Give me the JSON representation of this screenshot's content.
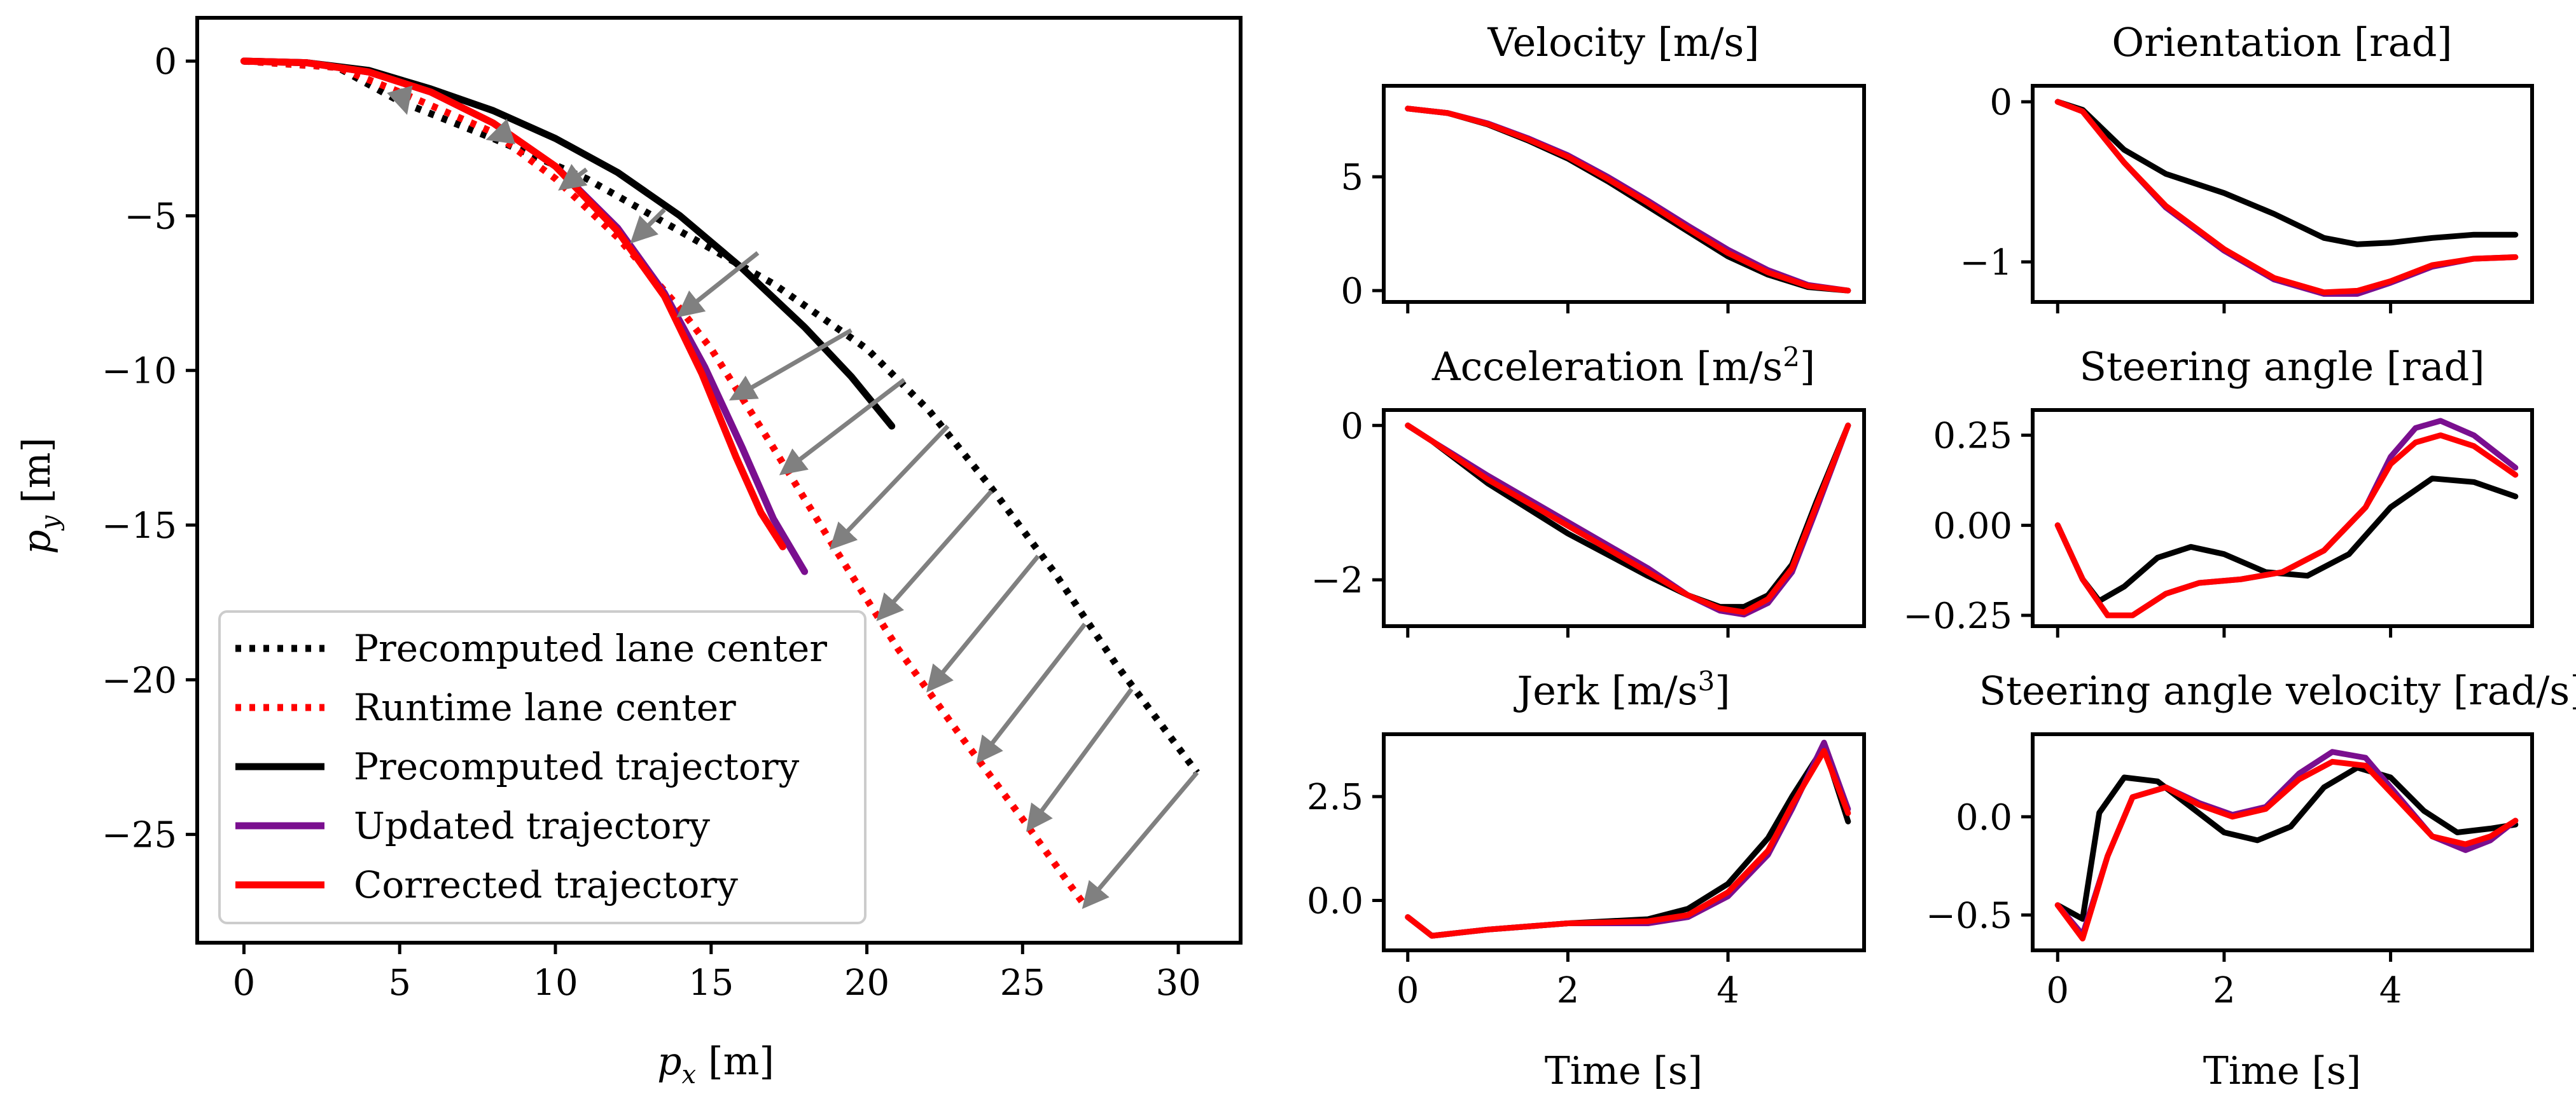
{
  "figure_title": "",
  "colors": {
    "black": "#000000",
    "purple": "#7a0f8f",
    "red": "#ff0000",
    "arrow": "#808080",
    "legend_border": "#cccccc"
  },
  "chart_data": [
    {
      "id": "trajectory",
      "type": "line",
      "title": "",
      "xlabel": "p_x [m]",
      "xlabel_parts": [
        "p",
        "x",
        " [m]"
      ],
      "ylabel": "p_y [m]",
      "ylabel_parts": [
        "p",
        "y",
        " [m]"
      ],
      "xlim": [
        -1.5,
        32
      ],
      "ylim": [
        -28.5,
        1.4
      ],
      "xticks": [
        0,
        5,
        10,
        15,
        20,
        25,
        30
      ],
      "yticks": [
        0,
        -5,
        -10,
        -15,
        -20,
        -25
      ],
      "ytick_labels": [
        "0",
        "−5",
        "−10",
        "−15",
        "−20",
        "−25"
      ],
      "legend_position": "lower-left",
      "series": [
        {
          "name": "Precomputed lane center",
          "style": "dotted",
          "color": "#000000",
          "x": [
            0,
            3,
            5,
            8,
            11,
            14,
            17,
            20,
            22,
            24,
            26,
            28,
            30.6
          ],
          "y": [
            0,
            -0.2,
            -1.3,
            -2.5,
            -3.8,
            -5.5,
            -7.2,
            -9.3,
            -11.3,
            -13.8,
            -16.5,
            -19.5,
            -23.0
          ]
        },
        {
          "name": "Runtime lane center",
          "style": "dotted",
          "color": "#ff0000",
          "x": [
            0,
            3,
            5,
            8,
            10,
            12,
            14,
            15,
            17,
            19,
            21,
            23,
            25,
            27
          ],
          "y": [
            0,
            -0.2,
            -1.0,
            -2.3,
            -3.8,
            -5.7,
            -8.0,
            -9.3,
            -12.5,
            -15.8,
            -19.0,
            -21.8,
            -24.5,
            -27.3
          ]
        },
        {
          "name": "Precomputed trajectory",
          "style": "solid",
          "color": "#000000",
          "x": [
            0,
            2,
            4,
            6,
            8,
            10,
            12,
            14,
            16,
            18,
            19.5,
            20.8
          ],
          "y": [
            0,
            -0.05,
            -0.3,
            -0.9,
            -1.6,
            -2.5,
            -3.6,
            -5.0,
            -6.7,
            -8.6,
            -10.2,
            -11.8
          ]
        },
        {
          "name": "Updated trajectory",
          "style": "solid",
          "color": "#7a0f8f",
          "x": [
            0,
            2,
            4,
            6,
            8,
            10,
            12,
            13.5,
            14.8,
            16,
            17,
            18
          ],
          "y": [
            0,
            -0.05,
            -0.35,
            -1.0,
            -2.0,
            -3.4,
            -5.4,
            -7.5,
            -9.9,
            -12.5,
            -14.8,
            -16.5
          ]
        },
        {
          "name": "Corrected trajectory",
          "style": "solid",
          "color": "#ff0000",
          "x": [
            0,
            2,
            4,
            6,
            8,
            10,
            12,
            13.5,
            14.7,
            15.8,
            16.6,
            17.3
          ],
          "y": [
            0,
            -0.05,
            -0.35,
            -1.0,
            -2.0,
            -3.4,
            -5.5,
            -7.6,
            -10.1,
            -12.8,
            -14.6,
            -15.7
          ]
        }
      ],
      "arrows": [
        {
          "x0": 5.0,
          "y0": -0.9,
          "x1": 5.2,
          "y1": -1.6
        },
        {
          "x0": 8.5,
          "y0": -2.3,
          "x1": 7.9,
          "y1": -2.5
        },
        {
          "x0": 11.0,
          "y0": -3.5,
          "x1": 10.2,
          "y1": -4.1
        },
        {
          "x0": 13.5,
          "y0": -4.8,
          "x1": 12.5,
          "y1": -5.8
        },
        {
          "x0": 16.5,
          "y0": -6.2,
          "x1": 14.0,
          "y1": -8.2
        },
        {
          "x0": 19.5,
          "y0": -8.7,
          "x1": 15.7,
          "y1": -10.9
        },
        {
          "x0": 21.2,
          "y0": -10.3,
          "x1": 17.3,
          "y1": -13.3
        },
        {
          "x0": 22.6,
          "y0": -11.8,
          "x1": 18.9,
          "y1": -15.7
        },
        {
          "x0": 24.0,
          "y0": -13.9,
          "x1": 20.4,
          "y1": -18.0
        },
        {
          "x0": 25.5,
          "y0": -16.0,
          "x1": 22.0,
          "y1": -20.3
        },
        {
          "x0": 27.0,
          "y0": -18.2,
          "x1": 23.6,
          "y1": -22.6
        },
        {
          "x0": 28.5,
          "y0": -20.3,
          "x1": 25.2,
          "y1": -24.8
        },
        {
          "x0": 30.6,
          "y0": -23.0,
          "x1": 27.0,
          "y1": -27.3
        }
      ]
    },
    {
      "id": "velocity",
      "type": "line",
      "title": "Velocity [m/s]",
      "xlabel": "",
      "xlim": [
        -0.3,
        5.7
      ],
      "ylim": [
        -0.5,
        9.0
      ],
      "xticks": [
        0,
        2,
        4
      ],
      "yticks": [
        0,
        5
      ],
      "ytick_labels": [
        "0",
        "5"
      ],
      "show_xtick_labels": false,
      "series": [
        {
          "name": "Precomputed trajectory",
          "color": "#000000",
          "x": [
            0,
            0.5,
            1,
            1.5,
            2,
            2.5,
            3,
            3.5,
            4,
            4.5,
            5,
            5.5
          ],
          "y": [
            8.0,
            7.8,
            7.3,
            6.6,
            5.8,
            4.8,
            3.7,
            2.6,
            1.5,
            0.7,
            0.15,
            0
          ]
        },
        {
          "name": "Updated trajectory",
          "color": "#7a0f8f",
          "x": [
            0,
            0.5,
            1,
            1.5,
            2,
            2.5,
            3,
            3.5,
            4,
            4.5,
            5,
            5.5
          ],
          "y": [
            8.0,
            7.8,
            7.35,
            6.7,
            5.95,
            5.0,
            3.95,
            2.85,
            1.8,
            0.9,
            0.25,
            0
          ]
        },
        {
          "name": "Corrected trajectory",
          "color": "#ff0000",
          "x": [
            0,
            0.5,
            1,
            1.5,
            2,
            2.5,
            3,
            3.5,
            4,
            4.5,
            5,
            5.5
          ],
          "y": [
            8.0,
            7.8,
            7.32,
            6.65,
            5.88,
            4.9,
            3.85,
            2.72,
            1.65,
            0.8,
            0.2,
            0
          ]
        }
      ]
    },
    {
      "id": "orientation",
      "type": "line",
      "title": "Orientation [rad]",
      "xlabel": "",
      "xlim": [
        -0.3,
        5.7
      ],
      "ylim": [
        -1.25,
        0.1
      ],
      "xticks": [
        0,
        2,
        4
      ],
      "yticks": [
        0,
        -1
      ],
      "ytick_labels": [
        "0",
        "−1"
      ],
      "show_xtick_labels": false,
      "series": [
        {
          "name": "Precomputed trajectory",
          "color": "#000000",
          "x": [
            0,
            0.3,
            0.8,
            1.3,
            2,
            2.6,
            3.2,
            3.6,
            4,
            4.5,
            5,
            5.5
          ],
          "y": [
            0,
            -0.05,
            -0.3,
            -0.45,
            -0.57,
            -0.7,
            -0.85,
            -0.89,
            -0.88,
            -0.85,
            -0.83,
            -0.83
          ]
        },
        {
          "name": "Updated trajectory",
          "color": "#7a0f8f",
          "x": [
            0,
            0.3,
            0.8,
            1.3,
            2,
            2.6,
            3.2,
            3.6,
            4,
            4.5,
            5,
            5.5
          ],
          "y": [
            0,
            -0.06,
            -0.38,
            -0.66,
            -0.93,
            -1.11,
            -1.2,
            -1.2,
            -1.13,
            -1.03,
            -0.98,
            -0.97
          ]
        },
        {
          "name": "Corrected trajectory",
          "color": "#ff0000",
          "x": [
            0,
            0.3,
            0.8,
            1.3,
            2,
            2.6,
            3.2,
            3.6,
            4,
            4.5,
            5,
            5.5
          ],
          "y": [
            0,
            -0.06,
            -0.38,
            -0.65,
            -0.92,
            -1.1,
            -1.19,
            -1.18,
            -1.12,
            -1.02,
            -0.98,
            -0.97
          ]
        }
      ]
    },
    {
      "id": "acceleration",
      "type": "line",
      "title": "Acceleration [m/s",
      "title_sup": "2",
      "title_tail": "]",
      "xlabel": "",
      "xlim": [
        -0.3,
        5.7
      ],
      "ylim": [
        -2.6,
        0.2
      ],
      "xticks": [
        0,
        2,
        4
      ],
      "yticks": [
        0,
        -2
      ],
      "ytick_labels": [
        "0",
        "−2"
      ],
      "show_xtick_labels": false,
      "series": [
        {
          "name": "Precomputed trajectory",
          "color": "#000000",
          "x": [
            0,
            0.3,
            1,
            2,
            3,
            3.5,
            3.9,
            4.2,
            4.5,
            4.8,
            5.1,
            5.5
          ],
          "y": [
            0,
            -0.2,
            -0.75,
            -1.4,
            -1.95,
            -2.2,
            -2.35,
            -2.35,
            -2.2,
            -1.8,
            -1.0,
            0
          ]
        },
        {
          "name": "Updated trajectory",
          "color": "#7a0f8f",
          "x": [
            0,
            0.3,
            1,
            2,
            3,
            3.5,
            3.9,
            4.2,
            4.5,
            4.8,
            5.1,
            5.5
          ],
          "y": [
            0,
            -0.2,
            -0.65,
            -1.25,
            -1.85,
            -2.2,
            -2.4,
            -2.45,
            -2.3,
            -1.9,
            -1.1,
            0
          ]
        },
        {
          "name": "Corrected trajectory",
          "color": "#ff0000",
          "x": [
            0,
            0.3,
            1,
            2,
            3,
            3.5,
            3.9,
            4.2,
            4.5,
            4.8,
            5.1,
            5.5
          ],
          "y": [
            0,
            -0.2,
            -0.7,
            -1.3,
            -1.9,
            -2.2,
            -2.37,
            -2.42,
            -2.25,
            -1.85,
            -1.05,
            0
          ]
        }
      ]
    },
    {
      "id": "steering_angle",
      "type": "line",
      "title": "Steering angle [rad]",
      "xlabel": "",
      "xlim": [
        -0.3,
        5.7
      ],
      "ylim": [
        -0.28,
        0.32
      ],
      "xticks": [
        0,
        2,
        4
      ],
      "yticks": [
        0.25,
        0.0,
        -0.25
      ],
      "ytick_labels": [
        "0.25",
        "0.00",
        "−0.25"
      ],
      "show_xtick_labels": false,
      "series": [
        {
          "name": "Precomputed trajectory",
          "color": "#000000",
          "x": [
            0,
            0.3,
            0.5,
            0.8,
            1.2,
            1.6,
            2,
            2.5,
            3,
            3.5,
            4,
            4.5,
            5,
            5.5
          ],
          "y": [
            0,
            -0.15,
            -0.21,
            -0.17,
            -0.09,
            -0.06,
            -0.08,
            -0.13,
            -0.14,
            -0.08,
            0.05,
            0.13,
            0.12,
            0.08
          ]
        },
        {
          "name": "Updated trajectory",
          "color": "#7a0f8f",
          "x": [
            0,
            0.3,
            0.6,
            0.9,
            1.3,
            1.7,
            2.2,
            2.7,
            3.2,
            3.7,
            4.0,
            4.3,
            4.6,
            5.0,
            5.5
          ],
          "y": [
            0,
            -0.15,
            -0.25,
            -0.25,
            -0.19,
            -0.16,
            -0.15,
            -0.13,
            -0.07,
            0.05,
            0.19,
            0.27,
            0.29,
            0.25,
            0.16
          ]
        },
        {
          "name": "Corrected trajectory",
          "color": "#ff0000",
          "x": [
            0,
            0.3,
            0.6,
            0.9,
            1.3,
            1.7,
            2.2,
            2.7,
            3.2,
            3.7,
            4.0,
            4.3,
            4.6,
            5.0,
            5.5
          ],
          "y": [
            0,
            -0.15,
            -0.25,
            -0.25,
            -0.19,
            -0.16,
            -0.15,
            -0.13,
            -0.07,
            0.05,
            0.17,
            0.23,
            0.25,
            0.22,
            0.14
          ]
        }
      ]
    },
    {
      "id": "jerk",
      "type": "line",
      "title": "Jerk [m/s",
      "title_sup": "3",
      "title_tail": "]",
      "xlabel": "Time [s]",
      "xlim": [
        -0.3,
        5.7
      ],
      "ylim": [
        -1.2,
        4.0
      ],
      "xticks": [
        0,
        2,
        4
      ],
      "xtick_labels": [
        "0",
        "2",
        "4"
      ],
      "yticks": [
        2.5,
        0.0
      ],
      "ytick_labels": [
        "2.5",
        "0.0"
      ],
      "show_xtick_labels": true,
      "series": [
        {
          "name": "Precomputed trajectory",
          "color": "#000000",
          "x": [
            0,
            0.3,
            1,
            2,
            3,
            3.5,
            4,
            4.5,
            4.8,
            5.2,
            5.5
          ],
          "y": [
            -0.4,
            -0.85,
            -0.7,
            -0.55,
            -0.45,
            -0.2,
            0.4,
            1.5,
            2.5,
            3.7,
            1.9
          ]
        },
        {
          "name": "Updated trajectory",
          "color": "#7a0f8f",
          "x": [
            0,
            0.3,
            1,
            2,
            3,
            3.5,
            4,
            4.5,
            4.8,
            5.2,
            5.5
          ],
          "y": [
            -0.4,
            -0.85,
            -0.7,
            -0.55,
            -0.55,
            -0.4,
            0.1,
            1.1,
            2.2,
            3.8,
            2.2
          ]
        },
        {
          "name": "Corrected trajectory",
          "color": "#ff0000",
          "x": [
            0,
            0.3,
            1,
            2,
            3,
            3.5,
            4,
            4.5,
            4.8,
            5.2,
            5.5
          ],
          "y": [
            -0.4,
            -0.85,
            -0.7,
            -0.55,
            -0.5,
            -0.35,
            0.2,
            1.2,
            2.3,
            3.6,
            2.1
          ]
        }
      ]
    },
    {
      "id": "steering_angle_velocity",
      "type": "line",
      "title": "Steering angle velocity [rad/s]",
      "xlabel": "Time [s]",
      "xlim": [
        -0.3,
        5.7
      ],
      "ylim": [
        -0.68,
        0.42
      ],
      "xticks": [
        0,
        2,
        4
      ],
      "xtick_labels": [
        "0",
        "2",
        "4"
      ],
      "yticks": [
        0.0,
        -0.5
      ],
      "ytick_labels": [
        "0.0",
        "−0.5"
      ],
      "show_xtick_labels": true,
      "series": [
        {
          "name": "Precomputed trajectory",
          "color": "#000000",
          "x": [
            0,
            0.3,
            0.5,
            0.8,
            1.2,
            1.6,
            2.0,
            2.4,
            2.8,
            3.2,
            3.6,
            4.0,
            4.4,
            4.8,
            5.2,
            5.5
          ],
          "y": [
            -0.45,
            -0.52,
            0.02,
            0.2,
            0.18,
            0.05,
            -0.08,
            -0.12,
            -0.05,
            0.15,
            0.25,
            0.2,
            0.03,
            -0.08,
            -0.06,
            -0.04
          ]
        },
        {
          "name": "Updated trajectory",
          "color": "#7a0f8f",
          "x": [
            0,
            0.3,
            0.6,
            0.9,
            1.3,
            1.7,
            2.1,
            2.5,
            2.9,
            3.3,
            3.7,
            4.1,
            4.5,
            4.9,
            5.2,
            5.5
          ],
          "y": [
            -0.45,
            -0.6,
            -0.2,
            0.1,
            0.15,
            0.07,
            0.01,
            0.05,
            0.22,
            0.33,
            0.3,
            0.1,
            -0.1,
            -0.17,
            -0.12,
            -0.02
          ]
        },
        {
          "name": "Corrected trajectory",
          "color": "#ff0000",
          "x": [
            0,
            0.3,
            0.6,
            0.9,
            1.3,
            1.7,
            2.1,
            2.5,
            2.9,
            3.3,
            3.7,
            4.1,
            4.5,
            4.9,
            5.2,
            5.5
          ],
          "y": [
            -0.45,
            -0.62,
            -0.2,
            0.1,
            0.15,
            0.06,
            0.0,
            0.04,
            0.19,
            0.28,
            0.26,
            0.08,
            -0.1,
            -0.14,
            -0.1,
            -0.02
          ]
        }
      ]
    }
  ]
}
